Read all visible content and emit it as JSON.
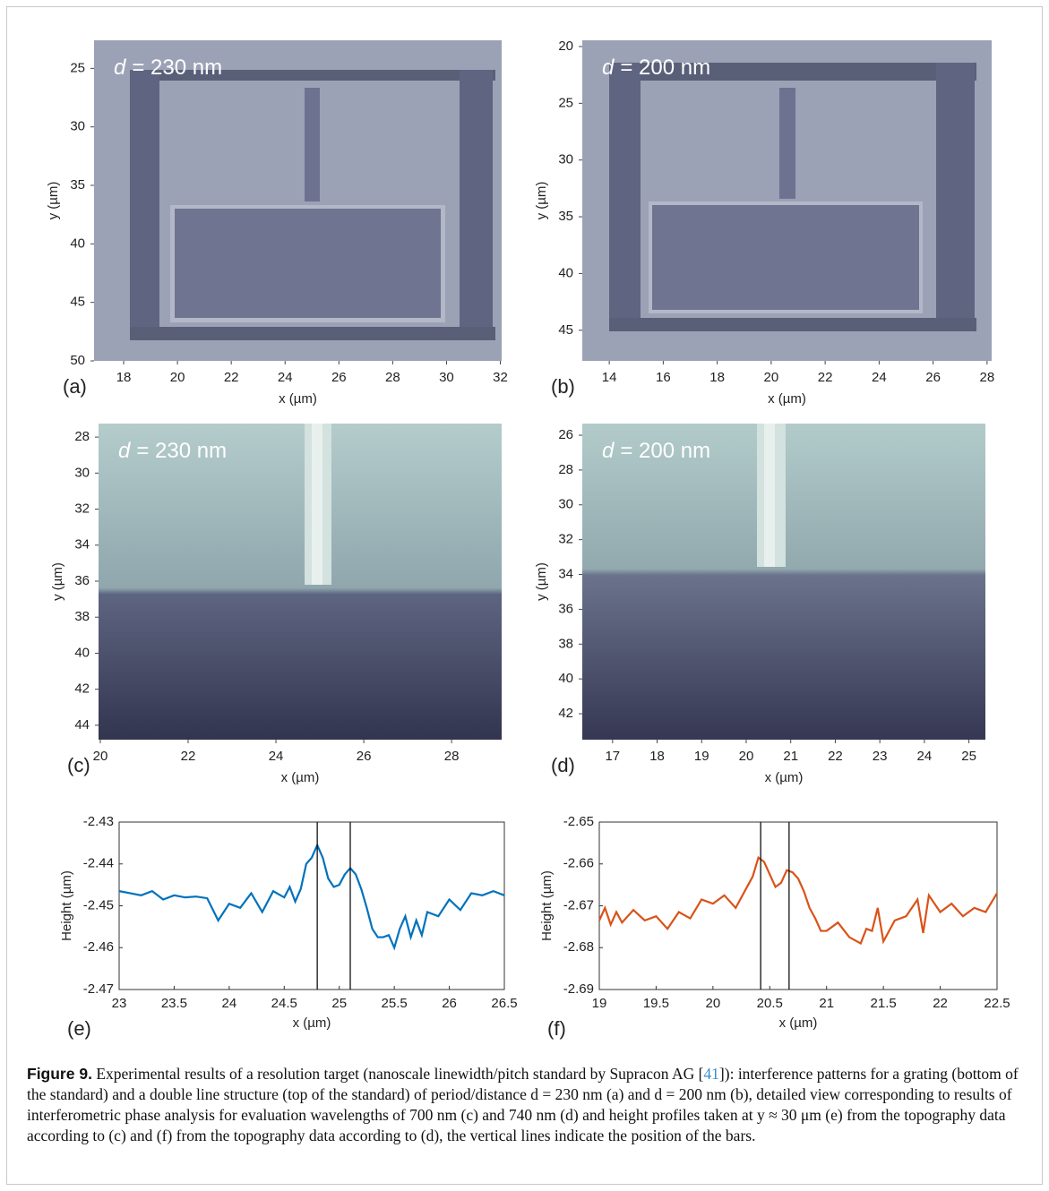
{
  "chart_data": [
    {
      "type": "image",
      "panel": "(a)",
      "annotation_symbol": "d",
      "annotation": "= 230 nm",
      "xlabel": "x (µm)",
      "ylabel": "y (µm)",
      "xlim": [
        16.9,
        32.05
      ],
      "ylim": [
        22.6,
        50
      ],
      "yreverse": true,
      "xticks": [
        18,
        20,
        22,
        24,
        26,
        28,
        30,
        32
      ],
      "yticks": [
        25,
        30,
        35,
        40,
        45,
        50
      ]
    },
    {
      "type": "image",
      "panel": "(b)",
      "annotation_symbol": "d",
      "annotation": "= 200 nm",
      "xlabel": "x (µm)",
      "ylabel": "y (µm)",
      "xlim": [
        13,
        28.17
      ],
      "ylim": [
        19.45,
        47.7
      ],
      "yreverse": true,
      "xticks": [
        14,
        16,
        18,
        20,
        22,
        24,
        26,
        28
      ],
      "yticks": [
        20,
        25,
        30,
        35,
        40,
        45
      ]
    },
    {
      "type": "image",
      "panel": "(c)",
      "annotation_symbol": "d",
      "annotation": "= 230 nm",
      "xlabel": "x (µm)",
      "ylabel": "y (µm)",
      "xlim": [
        19.96,
        29.14
      ],
      "ylim": [
        27.25,
        44.8
      ],
      "yreverse": true,
      "xticks": [
        20,
        22,
        24,
        26,
        28
      ],
      "yticks": [
        28,
        30,
        32,
        34,
        36,
        38,
        40,
        42,
        44
      ]
    },
    {
      "type": "image",
      "panel": "(d)",
      "annotation_symbol": "d",
      "annotation": "= 200 nm",
      "xlabel": "x (µm)",
      "ylabel": "y (µm)",
      "xlim": [
        16.32,
        25.37
      ],
      "ylim": [
        25.33,
        43.49
      ],
      "yreverse": true,
      "xticks": [
        17,
        18,
        19,
        20,
        21,
        22,
        23,
        24,
        25
      ],
      "yticks": [
        26,
        28,
        30,
        32,
        34,
        36,
        38,
        40,
        42
      ]
    },
    {
      "type": "line",
      "panel": "(e)",
      "xlabel": "x (µm)",
      "ylabel": "Height (µm)",
      "color": "#0072bd",
      "xlim": [
        23,
        26.5
      ],
      "ylim": [
        -2.47,
        -2.43
      ],
      "xticks": [
        23,
        23.5,
        24,
        24.5,
        25,
        25.5,
        26,
        26.5
      ],
      "yticks": [
        -2.47,
        -2.46,
        -2.45,
        -2.44,
        -2.43
      ],
      "vlines": [
        24.8,
        25.1
      ],
      "x": [
        23,
        23.1,
        23.2,
        23.3,
        23.4,
        23.5,
        23.6,
        23.7,
        23.8,
        23.9,
        24.0,
        24.1,
        24.2,
        24.3,
        24.4,
        24.5,
        24.55,
        24.6,
        24.65,
        24.7,
        24.75,
        24.8,
        24.85,
        24.9,
        24.95,
        25.0,
        25.05,
        25.1,
        25.15,
        25.2,
        25.25,
        25.3,
        25.35,
        25.4,
        25.45,
        25.5,
        25.55,
        25.6,
        25.65,
        25.7,
        25.75,
        25.8,
        25.9,
        26.0,
        26.1,
        26.2,
        26.3,
        26.4,
        26.5
      ],
      "values": [
        -2.4465,
        -2.447,
        -2.4475,
        -2.4465,
        -2.4485,
        -2.4475,
        -2.448,
        -2.4478,
        -2.4482,
        -2.4535,
        -2.4495,
        -2.4505,
        -2.447,
        -2.4515,
        -2.4465,
        -2.448,
        -2.4455,
        -2.449,
        -2.446,
        -2.44,
        -2.4385,
        -2.4355,
        -2.4385,
        -2.4435,
        -2.4455,
        -2.445,
        -2.4425,
        -2.441,
        -2.4425,
        -2.446,
        -2.4505,
        -2.4555,
        -2.4575,
        -2.4575,
        -2.457,
        -2.46,
        -2.4555,
        -2.4525,
        -2.4575,
        -2.4535,
        -2.457,
        -2.4515,
        -2.4525,
        -2.4485,
        -2.451,
        -2.447,
        -2.4475,
        -2.4465,
        -2.4475
      ]
    },
    {
      "type": "line",
      "panel": "(f)",
      "xlabel": "x (µm)",
      "ylabel": "Height (µm)",
      "color": "#d95319",
      "xlim": [
        19,
        22.5
      ],
      "ylim": [
        -2.69,
        -2.65
      ],
      "xticks": [
        19,
        19.5,
        20,
        20.5,
        21,
        21.5,
        22,
        22.5
      ],
      "yticks": [
        -2.69,
        -2.68,
        -2.67,
        -2.66,
        -2.65
      ],
      "vlines": [
        20.42,
        20.67
      ],
      "x": [
        19,
        19.05,
        19.1,
        19.15,
        19.2,
        19.3,
        19.4,
        19.5,
        19.6,
        19.7,
        19.8,
        19.9,
        20.0,
        20.1,
        20.2,
        20.3,
        20.35,
        20.4,
        20.45,
        20.5,
        20.55,
        20.6,
        20.65,
        20.7,
        20.75,
        20.8,
        20.85,
        20.9,
        20.95,
        21.0,
        21.1,
        21.2,
        21.3,
        21.35,
        21.4,
        21.45,
        21.5,
        21.6,
        21.7,
        21.8,
        21.85,
        21.9,
        22.0,
        22.1,
        22.2,
        22.3,
        22.4,
        22.5
      ],
      "values": [
        -2.6735,
        -2.6705,
        -2.6745,
        -2.6715,
        -2.674,
        -2.671,
        -2.6735,
        -2.6725,
        -2.6755,
        -2.6715,
        -2.673,
        -2.6685,
        -2.6695,
        -2.6675,
        -2.6705,
        -2.6655,
        -2.663,
        -2.6585,
        -2.6595,
        -2.6625,
        -2.6655,
        -2.6645,
        -2.6615,
        -2.662,
        -2.6635,
        -2.6665,
        -2.6705,
        -2.673,
        -2.676,
        -2.676,
        -2.674,
        -2.6775,
        -2.679,
        -2.6755,
        -2.676,
        -2.6705,
        -2.6785,
        -2.6735,
        -2.6725,
        -2.6685,
        -2.6765,
        -2.6675,
        -2.6715,
        -2.6695,
        -2.6725,
        -2.6705,
        -2.6715,
        -2.667
      ]
    }
  ],
  "caption": {
    "label": "Figure 9.",
    "text_before": "Experimental results of a resolution target (nanoscale linewidth/pitch standard by Supracon AG [",
    "ref": "41",
    "text_after": "]): interference patterns for a grating (bottom of the standard) and a double line structure (top of the standard) of period/distance d = 230 nm (a) and d = 200 nm (b), detailed view corresponding to results of interferometric phase analysis for evaluation wavelengths of 700 nm (c) and 740 nm (d) and height profiles taken at y ≈ 30 μm (e) from the topography data according to (c) and (f) from the topography data according to (d), the vertical lines indicate the position of the bars."
  }
}
